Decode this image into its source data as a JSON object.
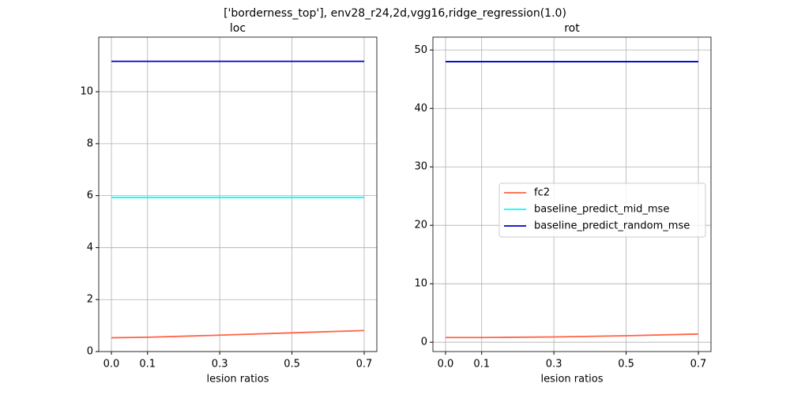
{
  "title": "['borderness_top'], env28_r24,2d,vgg16,ridge_regression(1.0)",
  "chart_data": [
    {
      "type": "line",
      "title": "loc",
      "x_label": "lesion ratios",
      "x": [
        0,
        0.1,
        0.3,
        0.5,
        0.7
      ],
      "series": [
        {
          "name": "fc2",
          "color": "#ff6347",
          "values": [
            0.53,
            0.55,
            0.63,
            0.72,
            0.81
          ]
        },
        {
          "name": "baseline_predict_mid_mse",
          "color": "#00ffff",
          "values": [
            5.93,
            5.93,
            5.93,
            5.93,
            5.93
          ]
        },
        {
          "name": "baseline_predict_random_mse",
          "color": "#0000cd",
          "values": [
            11.17,
            11.17,
            11.17,
            11.17,
            11.17
          ]
        }
      ],
      "xlim": [
        -0.035,
        0.735
      ],
      "xticks": [
        {
          "value": 0,
          "label": "0.0"
        },
        0.1,
        0.3,
        0.5,
        0.7
      ],
      "ylim": [
        0,
        12.1
      ],
      "yticks": [
        0,
        2,
        4,
        6,
        8,
        10
      ],
      "grid": true
    },
    {
      "type": "line",
      "title": "rot",
      "x_label": "lesion ratios",
      "x": [
        0,
        0.1,
        0.3,
        0.5,
        0.7
      ],
      "series": [
        {
          "name": "fc2",
          "color": "#ff6347",
          "values": [
            0.8,
            0.8,
            0.9,
            1.1,
            1.4
          ]
        },
        {
          "name": "baseline_predict_mid_mse",
          "color": "#00ffff",
          "values": [
            48.0,
            48.0,
            48.0,
            48.0,
            48.0
          ]
        },
        {
          "name": "baseline_predict_random_mse",
          "color": "#0000cd",
          "values": [
            48.0,
            48.0,
            48.0,
            48.0,
            48.0
          ]
        }
      ],
      "xlim": [
        -0.035,
        0.735
      ],
      "xticks": [
        {
          "value": 0,
          "label": "0.0"
        },
        0.1,
        0.3,
        0.5,
        0.7
      ],
      "ylim": [
        -1.6,
        52.2
      ],
      "yticks": [
        0,
        10,
        20,
        30,
        40,
        50
      ],
      "grid": true,
      "legend": "center right"
    }
  ]
}
